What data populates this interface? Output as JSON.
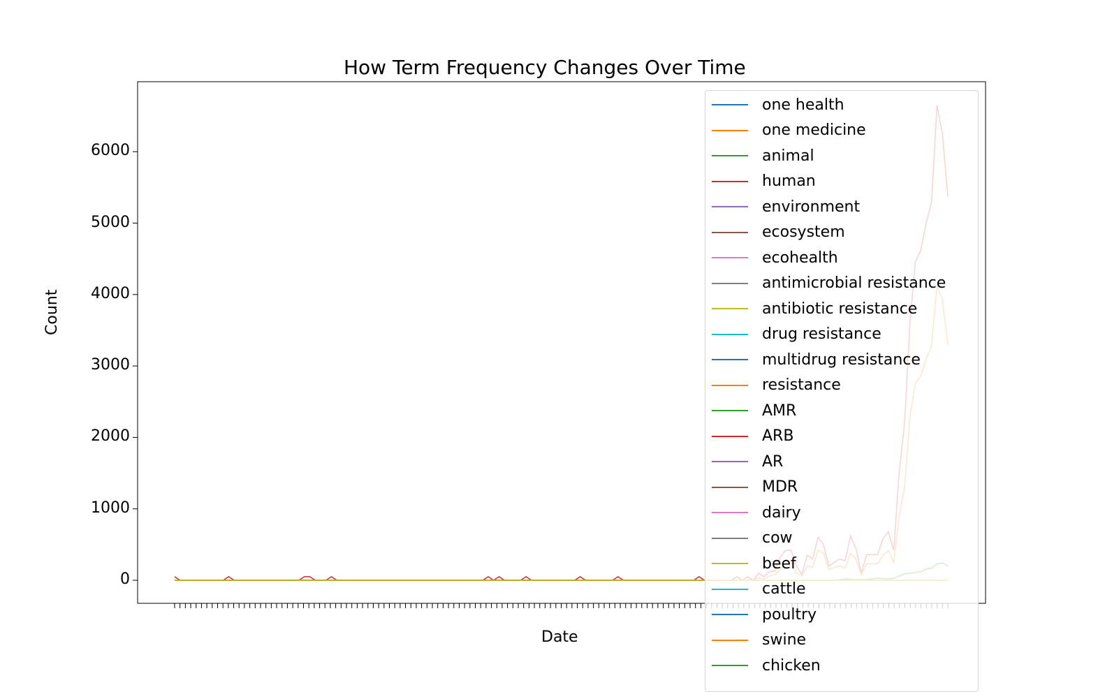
{
  "chart_data": {
    "type": "line",
    "title": "How Term Frequency Changes Over Time",
    "xlabel": "Date",
    "ylabel": "Count",
    "ylim": [
      -650,
      7300
    ],
    "yticks": [
      0,
      1000,
      2000,
      3000,
      4000,
      5000,
      6000
    ],
    "legend_position": "upper-right",
    "grid": false,
    "x_tick_labels_overlapping": true,
    "series": [
      {
        "name": "one health",
        "color": "#1f77b4",
        "values": [
          0,
          0,
          0,
          0,
          0,
          0,
          0,
          0,
          0,
          0,
          0,
          0,
          0,
          0,
          0,
          0,
          0,
          0,
          0,
          0,
          0,
          0,
          0,
          0,
          0,
          0,
          0,
          0,
          0,
          0,
          0,
          0,
          0,
          0,
          0,
          0,
          0,
          0,
          0,
          0,
          0,
          0,
          0,
          0,
          0,
          0,
          0,
          0,
          0,
          0,
          0,
          0,
          0,
          0,
          0,
          0,
          0,
          0,
          0,
          0,
          0,
          0,
          0,
          0,
          0,
          0,
          0,
          0,
          0,
          0,
          0,
          0,
          0,
          0,
          0,
          0,
          0,
          0,
          0,
          0,
          0,
          0,
          0,
          0,
          0,
          0,
          0,
          0,
          0,
          0,
          0,
          0,
          0,
          0,
          0,
          0,
          0,
          0,
          0,
          0,
          0,
          0,
          0,
          0,
          0,
          0,
          0,
          0,
          0,
          0,
          0,
          0,
          0,
          0,
          0,
          0,
          0,
          0,
          0,
          0,
          0,
          0,
          0,
          0,
          0,
          0,
          0,
          0,
          0,
          0,
          0,
          0,
          0,
          0,
          0,
          0,
          0,
          0,
          0,
          0,
          0,
          0,
          0,
          0,
          0
        ]
      },
      {
        "name": "one medicine",
        "color": "#ff7f0e",
        "values": [
          0,
          0,
          0,
          0,
          0,
          0,
          0,
          0,
          0,
          0,
          0,
          0,
          0,
          0,
          0,
          0,
          0,
          0,
          0,
          0,
          0,
          0,
          0,
          0,
          0,
          0,
          0,
          0,
          0,
          0,
          0,
          0,
          0,
          0,
          0,
          0,
          0,
          0,
          0,
          0,
          0,
          0,
          0,
          0,
          0,
          0,
          0,
          0,
          0,
          0,
          0,
          0,
          0,
          0,
          0,
          0,
          0,
          0,
          0,
          0,
          0,
          0,
          0,
          0,
          0,
          0,
          0,
          0,
          0,
          0,
          0,
          0,
          0,
          0,
          0,
          0,
          0,
          0,
          0,
          0,
          0,
          0,
          0,
          0,
          0,
          0,
          0,
          0,
          0,
          0,
          0,
          0,
          0,
          0,
          0,
          0,
          0,
          0,
          0,
          0,
          0,
          0,
          0,
          0,
          0,
          0,
          0,
          0,
          0,
          0,
          0,
          0,
          0,
          0,
          0,
          0,
          0,
          0,
          0,
          0,
          0,
          0,
          0,
          0,
          0,
          0,
          0,
          0,
          0,
          0,
          0,
          0,
          0,
          0,
          0,
          0,
          0,
          0,
          0,
          0,
          0,
          0,
          0,
          0,
          0
        ]
      },
      {
        "name": "animal",
        "color": "#2ca02c",
        "values": [
          0,
          0,
          0,
          0,
          0,
          0,
          0,
          0,
          0,
          0,
          0,
          0,
          0,
          0,
          0,
          0,
          0,
          0,
          0,
          0,
          0,
          0,
          0,
          0,
          0,
          0,
          0,
          0,
          0,
          0,
          0,
          0,
          0,
          0,
          0,
          0,
          0,
          0,
          0,
          0,
          0,
          0,
          0,
          0,
          0,
          0,
          0,
          0,
          0,
          0,
          0,
          0,
          0,
          0,
          0,
          0,
          0,
          0,
          0,
          0,
          0,
          0,
          0,
          0,
          0,
          0,
          0,
          0,
          0,
          0,
          0,
          0,
          0,
          0,
          0,
          0,
          0,
          0,
          0,
          0,
          0,
          0,
          0,
          0,
          0,
          0,
          0,
          0,
          0,
          0,
          0,
          0,
          0,
          0,
          0,
          0,
          0,
          0,
          0,
          0,
          0,
          0,
          0,
          0,
          0,
          0,
          0,
          0,
          0,
          0,
          0,
          0,
          0,
          0,
          0,
          0,
          0,
          0,
          0,
          0,
          0,
          0,
          0,
          0,
          10,
          20,
          10,
          10,
          10,
          10,
          20,
          30,
          20,
          20,
          30,
          60,
          90,
          100,
          110,
          120,
          160,
          170,
          230,
          240,
          200
        ]
      },
      {
        "name": "human",
        "color": "#d62728",
        "values": [
          50,
          0,
          0,
          0,
          0,
          0,
          0,
          0,
          0,
          0,
          50,
          0,
          0,
          0,
          0,
          0,
          0,
          0,
          0,
          0,
          0,
          0,
          0,
          0,
          50,
          50,
          0,
          0,
          0,
          50,
          0,
          0,
          0,
          0,
          0,
          0,
          0,
          0,
          0,
          0,
          0,
          0,
          0,
          0,
          0,
          0,
          0,
          0,
          0,
          0,
          0,
          0,
          0,
          0,
          0,
          0,
          0,
          0,
          50,
          0,
          50,
          0,
          0,
          0,
          0,
          50,
          0,
          0,
          0,
          0,
          0,
          0,
          0,
          0,
          0,
          50,
          0,
          0,
          0,
          0,
          0,
          0,
          50,
          0,
          0,
          0,
          0,
          0,
          0,
          0,
          0,
          0,
          0,
          0,
          0,
          0,
          0,
          50,
          0,
          0,
          0,
          0,
          0,
          0,
          50,
          0,
          50,
          0,
          100,
          50,
          120,
          130,
          320,
          420,
          420,
          200,
          80,
          350,
          300,
          600,
          500,
          200,
          250,
          300,
          270,
          620,
          450,
          100,
          360,
          360,
          360,
          580,
          680,
          420,
          1500,
          2200,
          3600,
          4460,
          4620,
          5000,
          5300,
          6650,
          6250,
          5370
        ]
      },
      {
        "name": "environment",
        "color": "#9467bd",
        "values": []
      },
      {
        "name": "ecosystem",
        "color": "#8c564b",
        "values": []
      },
      {
        "name": "ecohealth",
        "color": "#e377c2",
        "values": []
      },
      {
        "name": "antimicrobial resistance",
        "color": "#7f7f7f",
        "values": []
      },
      {
        "name": "antibiotic resistance",
        "color": "#bcbd22",
        "values": []
      },
      {
        "name": "drug resistance",
        "color": "#17becf",
        "values": []
      },
      {
        "name": "multidrug resistance",
        "color": "#1f77b4",
        "values": []
      },
      {
        "name": "resistance",
        "color": "#ff7f0e",
        "values": [
          0,
          0,
          0,
          0,
          0,
          0,
          0,
          0,
          0,
          0,
          0,
          0,
          0,
          0,
          0,
          0,
          0,
          0,
          0,
          0,
          0,
          0,
          0,
          0,
          0,
          0,
          0,
          0,
          0,
          0,
          0,
          0,
          0,
          0,
          0,
          0,
          0,
          0,
          0,
          0,
          0,
          0,
          0,
          0,
          0,
          0,
          0,
          0,
          0,
          0,
          0,
          0,
          0,
          0,
          0,
          0,
          0,
          0,
          0,
          0,
          0,
          0,
          0,
          0,
          0,
          0,
          0,
          0,
          0,
          0,
          0,
          0,
          0,
          0,
          0,
          0,
          0,
          0,
          0,
          0,
          0,
          0,
          0,
          0,
          0,
          0,
          0,
          0,
          0,
          0,
          0,
          0,
          0,
          0,
          0,
          0,
          0,
          0,
          0,
          0,
          0,
          0,
          0,
          0,
          0,
          0,
          0,
          0,
          30,
          20,
          60,
          80,
          150,
          230,
          260,
          100,
          60,
          200,
          180,
          420,
          380,
          150,
          180,
          200,
          170,
          380,
          300,
          80,
          230,
          230,
          230,
          350,
          420,
          250,
          900,
          1300,
          2300,
          2760,
          2860,
          3100,
          3280,
          4130,
          3920,
          3300
        ]
      },
      {
        "name": "AMR",
        "color": "#2ca02c",
        "values": []
      },
      {
        "name": "ARB",
        "color": "#d62728",
        "values": []
      },
      {
        "name": "AR",
        "color": "#9467bd",
        "values": []
      },
      {
        "name": "MDR",
        "color": "#8c564b",
        "values": []
      },
      {
        "name": "dairy",
        "color": "#e377c2",
        "values": []
      },
      {
        "name": "cow",
        "color": "#7f7f7f",
        "values": []
      },
      {
        "name": "beef",
        "color": "#bcbd22",
        "values": [
          0,
          0,
          0,
          0,
          0,
          0,
          0,
          0,
          0,
          0,
          0,
          0,
          0,
          0,
          0,
          0,
          0,
          0,
          0,
          0,
          0,
          0,
          0,
          0,
          0,
          0,
          0,
          0,
          0,
          0,
          0,
          0,
          0,
          0,
          0,
          0,
          0,
          0,
          0,
          0,
          0,
          0,
          0,
          0,
          0,
          0,
          0,
          0,
          0,
          0,
          0,
          0,
          0,
          0,
          0,
          0,
          0,
          0,
          0,
          0,
          0,
          0,
          0,
          0,
          0,
          0,
          0,
          0,
          0,
          0,
          0,
          0,
          0,
          0,
          0,
          0,
          0,
          0,
          0,
          0,
          0,
          0,
          0,
          0,
          0,
          0,
          0,
          0,
          0,
          0,
          0,
          0,
          0,
          0,
          0,
          0,
          0,
          0,
          0,
          0,
          0,
          0,
          0,
          0,
          0,
          0,
          0,
          0,
          0,
          0,
          0,
          0,
          0,
          0,
          0,
          0,
          0,
          0,
          0,
          0,
          0,
          0,
          0,
          0,
          0,
          0,
          0,
          0,
          0,
          0,
          0,
          0,
          0,
          0,
          0,
          0,
          0,
          0,
          0,
          0,
          0,
          0,
          0,
          0,
          0
        ]
      },
      {
        "name": "cattle",
        "color": "#17becf",
        "values": []
      },
      {
        "name": "poultry",
        "color": "#1f77b4",
        "values": []
      },
      {
        "name": "swine",
        "color": "#ff7f0e",
        "values": []
      },
      {
        "name": "chicken",
        "color": "#2ca02c",
        "values": []
      }
    ]
  }
}
